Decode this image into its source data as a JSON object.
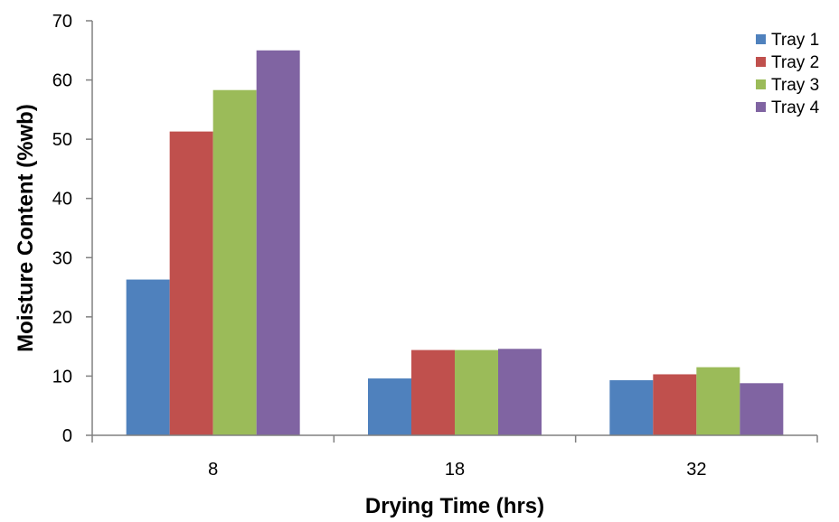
{
  "chart_data": {
    "type": "bar",
    "title": "",
    "xlabel": "Drying Time (hrs)",
    "ylabel": "Moisture Content (%wb)",
    "categories": [
      "8",
      "18",
      "32"
    ],
    "ylim": [
      0,
      70
    ],
    "yticks": [
      0,
      10,
      20,
      30,
      40,
      50,
      60,
      70
    ],
    "grid": false,
    "legend_position": "top-right",
    "series": [
      {
        "name": "Tray 1",
        "color": "#4f81bd",
        "values": [
          26.3,
          9.6,
          9.3
        ]
      },
      {
        "name": "Tray 2",
        "color": "#c0504d",
        "values": [
          51.3,
          14.4,
          10.3
        ]
      },
      {
        "name": "Tray 3",
        "color": "#9bbb59",
        "values": [
          58.3,
          14.4,
          11.5
        ]
      },
      {
        "name": "Tray 4",
        "color": "#8064a2",
        "values": [
          65.0,
          14.6,
          8.8
        ]
      }
    ]
  }
}
